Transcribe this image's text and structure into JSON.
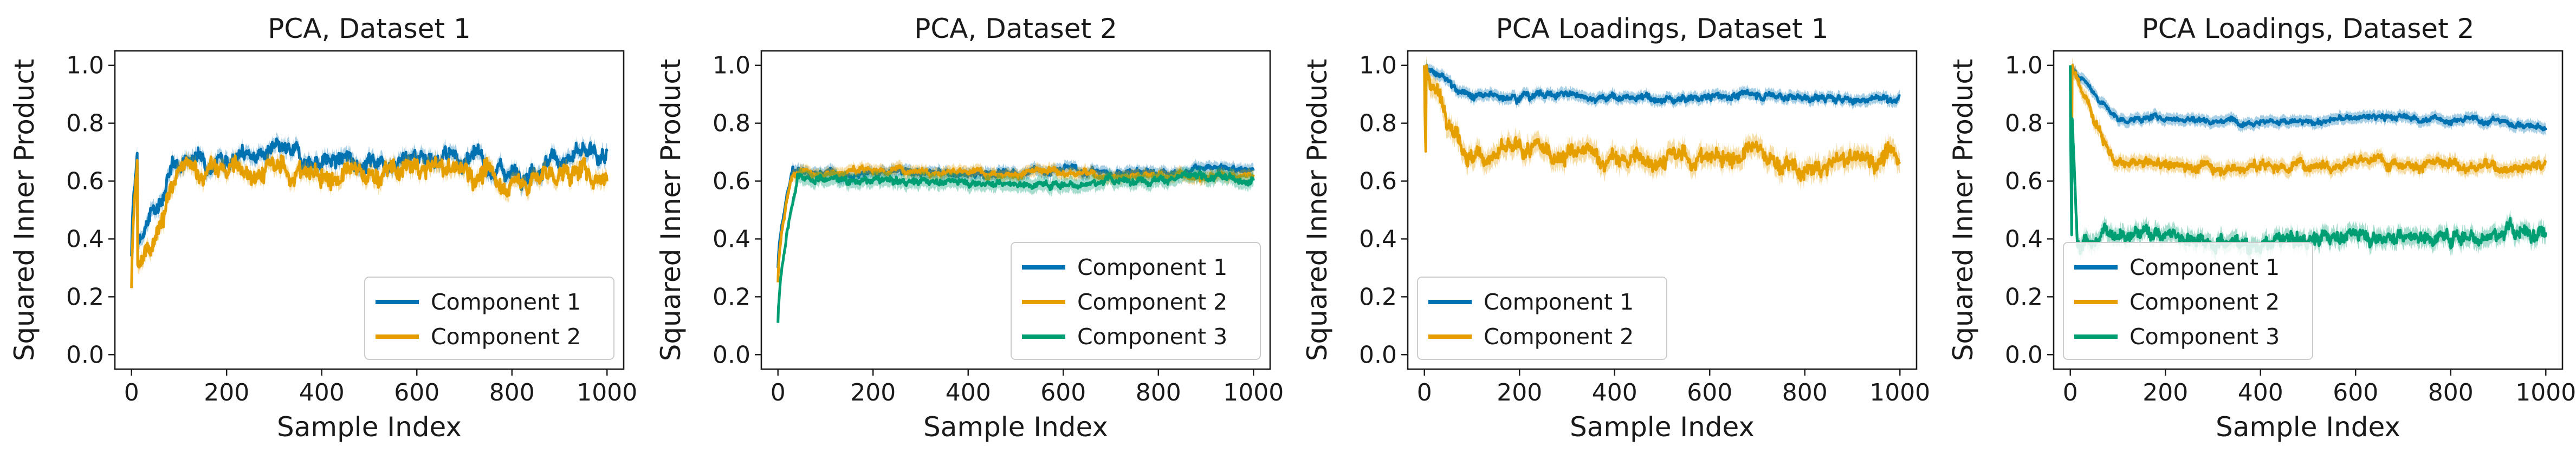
{
  "colors": {
    "component_1": "#0072B2",
    "component_2": "#E69F00",
    "component_3": "#009E73"
  },
  "chart_data": [
    {
      "type": "line",
      "title": "PCA, Dataset 1",
      "xlabel": "Sample Index",
      "ylabel": "Squared Inner Product",
      "xlim": [
        -35,
        1035
      ],
      "ylim": [
        -0.05,
        1.05
      ],
      "xticks": [
        0,
        200,
        400,
        600,
        800,
        1000
      ],
      "yticks": [
        0.0,
        0.2,
        0.4,
        0.6,
        0.8,
        1.0
      ],
      "legend_position": "lower-right",
      "series": [
        {
          "name": "Component 1",
          "color": "#0072B2",
          "start": 0.34,
          "level": 0.68,
          "rise_samples": 12,
          "noise": 0.03,
          "band": 0.025,
          "x": [
            0,
            100,
            200,
            300,
            400,
            500,
            600,
            700,
            800,
            900,
            1000
          ],
          "values": [
            0.34,
            0.67,
            0.69,
            0.69,
            0.67,
            0.67,
            0.69,
            0.68,
            0.63,
            0.68,
            0.68
          ]
        },
        {
          "name": "Component 2",
          "color": "#E69F00",
          "start": 0.23,
          "level": 0.63,
          "rise_samples": 12,
          "noise": 0.035,
          "band": 0.025,
          "x": [
            0,
            100,
            200,
            300,
            400,
            500,
            600,
            700,
            800,
            900,
            1000
          ],
          "values": [
            0.23,
            0.63,
            0.64,
            0.64,
            0.62,
            0.62,
            0.64,
            0.64,
            0.59,
            0.63,
            0.62
          ]
        }
      ]
    },
    {
      "type": "line",
      "title": "PCA, Dataset 2",
      "xlabel": "Sample Index",
      "ylabel": "Squared Inner Product",
      "xlim": [
        -35,
        1035
      ],
      "ylim": [
        -0.05,
        1.05
      ],
      "xticks": [
        0,
        200,
        400,
        600,
        800,
        1000
      ],
      "yticks": [
        0.0,
        0.2,
        0.4,
        0.6,
        0.8,
        1.0
      ],
      "legend_position": "lower-right",
      "series": [
        {
          "name": "Component 1",
          "color": "#0072B2",
          "start": 0.3,
          "level": 0.63,
          "rise_samples": 30,
          "noise": 0.012,
          "band": 0.02,
          "x": [
            0,
            30,
            100,
            200,
            300,
            400,
            500,
            600,
            700,
            800,
            900,
            1000
          ],
          "values": [
            0.3,
            0.64,
            0.63,
            0.63,
            0.63,
            0.62,
            0.63,
            0.64,
            0.63,
            0.63,
            0.64,
            0.64
          ]
        },
        {
          "name": "Component 2",
          "color": "#E69F00",
          "start": 0.25,
          "level": 0.63,
          "rise_samples": 30,
          "noise": 0.012,
          "band": 0.02,
          "x": [
            0,
            30,
            100,
            200,
            300,
            400,
            500,
            600,
            700,
            800,
            900,
            1000
          ],
          "values": [
            0.25,
            0.63,
            0.63,
            0.64,
            0.64,
            0.63,
            0.63,
            0.63,
            0.62,
            0.62,
            0.62,
            0.62
          ]
        },
        {
          "name": "Component 3",
          "color": "#009E73",
          "start": 0.11,
          "level": 0.6,
          "rise_samples": 40,
          "noise": 0.012,
          "band": 0.025,
          "x": [
            0,
            40,
            100,
            200,
            300,
            400,
            500,
            600,
            700,
            800,
            900,
            1000
          ],
          "values": [
            0.11,
            0.62,
            0.61,
            0.6,
            0.6,
            0.6,
            0.59,
            0.59,
            0.6,
            0.61,
            0.61,
            0.61
          ]
        }
      ]
    },
    {
      "type": "line",
      "title": "PCA Loadings, Dataset 1",
      "xlabel": "Sample Index",
      "ylabel": "Squared Inner Product",
      "xlim": [
        -35,
        1035
      ],
      "ylim": [
        -0.05,
        1.05
      ],
      "xticks": [
        0,
        200,
        400,
        600,
        800,
        1000
      ],
      "yticks": [
        0.0,
        0.2,
        0.4,
        0.6,
        0.8,
        1.0
      ],
      "legend_position": "lower-left",
      "series": [
        {
          "name": "Component 1",
          "color": "#0072B2",
          "start": 1.0,
          "level": 0.89,
          "rise_samples": 3,
          "noise": 0.012,
          "band": 0.02,
          "x": [
            0,
            100,
            200,
            300,
            400,
            500,
            600,
            700,
            800,
            900,
            1000
          ],
          "values": [
            1.0,
            0.89,
            0.9,
            0.9,
            0.89,
            0.88,
            0.89,
            0.9,
            0.89,
            0.88,
            0.89
          ]
        },
        {
          "name": "Component 2",
          "color": "#E69F00",
          "start": 1.0,
          "level": 0.68,
          "rise_samples": 3,
          "noise": 0.03,
          "band": 0.035,
          "x": [
            0,
            100,
            200,
            300,
            400,
            500,
            600,
            700,
            800,
            900,
            1000
          ],
          "values": [
            1.0,
            0.68,
            0.7,
            0.7,
            0.67,
            0.68,
            0.68,
            0.7,
            0.62,
            0.68,
            0.68
          ]
        }
      ]
    },
    {
      "type": "line",
      "title": "PCA Loadings, Dataset 2",
      "xlabel": "Sample Index",
      "ylabel": "Squared Inner Product",
      "xlim": [
        -35,
        1035
      ],
      "ylim": [
        -0.05,
        1.05
      ],
      "xticks": [
        0,
        200,
        400,
        600,
        800,
        1000
      ],
      "yticks": [
        0.0,
        0.2,
        0.4,
        0.6,
        0.8,
        1.0
      ],
      "legend_position": "lower-left",
      "series": [
        {
          "name": "Component 1",
          "color": "#0072B2",
          "start": 1.0,
          "level": 0.81,
          "rise_samples": 3,
          "noise": 0.01,
          "band": 0.02,
          "x": [
            0,
            100,
            200,
            300,
            400,
            500,
            600,
            700,
            800,
            900,
            1000
          ],
          "values": [
            1.0,
            0.81,
            0.82,
            0.81,
            0.81,
            0.8,
            0.82,
            0.82,
            0.81,
            0.81,
            0.78
          ]
        },
        {
          "name": "Component 2",
          "color": "#E69F00",
          "start": 1.0,
          "level": 0.65,
          "rise_samples": 3,
          "noise": 0.018,
          "band": 0.025,
          "x": [
            0,
            100,
            200,
            300,
            400,
            500,
            600,
            700,
            800,
            900,
            1000
          ],
          "values": [
            1.0,
            0.65,
            0.66,
            0.65,
            0.65,
            0.66,
            0.67,
            0.67,
            0.65,
            0.65,
            0.66
          ]
        },
        {
          "name": "Component 3",
          "color": "#009E73",
          "start": 1.0,
          "level": 0.42,
          "rise_samples": 3,
          "noise": 0.025,
          "band": 0.03,
          "x": [
            0,
            15,
            100,
            200,
            300,
            400,
            500,
            600,
            700,
            800,
            900,
            1000
          ],
          "values": [
            1.0,
            0.38,
            0.43,
            0.42,
            0.4,
            0.38,
            0.4,
            0.42,
            0.41,
            0.41,
            0.42,
            0.43
          ]
        }
      ]
    }
  ]
}
